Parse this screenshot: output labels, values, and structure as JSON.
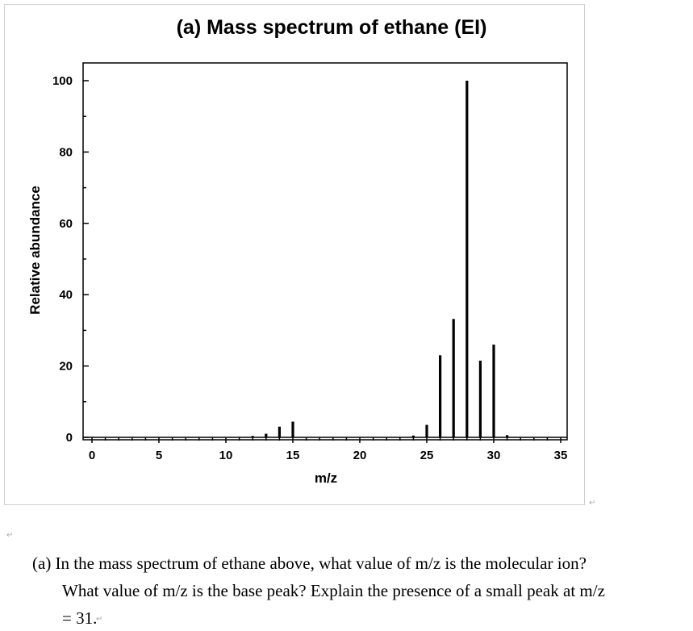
{
  "chart_data": {
    "type": "bar",
    "title": "(a) Mass spectrum of ethane (EI)",
    "xlabel": "m/z",
    "ylabel": "Relative abundance",
    "xlim": [
      -1,
      35.5
    ],
    "ylim": [
      0,
      105
    ],
    "xticks": [
      0,
      5,
      10,
      15,
      20,
      25,
      30,
      35
    ],
    "yticks": [
      0,
      20,
      40,
      60,
      80,
      100
    ],
    "grid": false,
    "color": "#000000",
    "x": [
      12,
      13,
      14,
      15,
      24,
      25,
      26,
      27,
      28,
      29,
      30,
      31
    ],
    "values": [
      0.4,
      1.0,
      3.0,
      4.4,
      0.5,
      3.5,
      23.0,
      33.2,
      100,
      21.5,
      26.0,
      0.6
    ]
  },
  "question": {
    "line1": "(a) In the mass spectrum of ethane above, what value of m/z is the molecular ion?",
    "line2": "What value of m/z is the base peak? Explain the presence of a small peak at m/z",
    "line3": "= 31."
  },
  "paragraph_mark": "↵"
}
